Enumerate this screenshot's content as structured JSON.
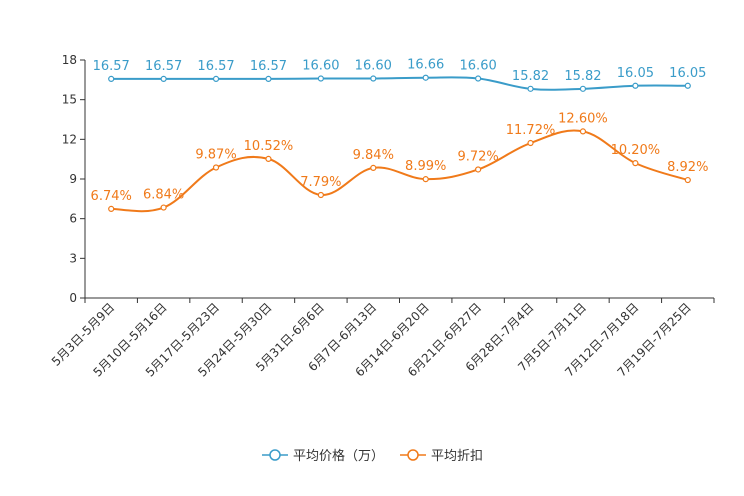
{
  "chart_data": {
    "type": "line",
    "title": "",
    "xlabel": "",
    "ylabel": "",
    "ylim": [
      0,
      18
    ],
    "yticks": [
      0,
      3,
      6,
      9,
      12,
      15,
      18
    ],
    "grid": false,
    "legend_position": "bottom-center",
    "categories": [
      "5月3日-5月9日",
      "5月10日-5月16日",
      "5月17日-5月23日",
      "5月24日-5月30日",
      "5月31日-6月6日",
      "6月7日-6月13日",
      "6月14日-6月20日",
      "6月21日-6月27日",
      "6月28日-7月4日",
      "7月5日-7月11日",
      "7月12日-7月18日",
      "7月19日-7月25日"
    ],
    "series": [
      {
        "name": "平均价格（万）",
        "color": "#3a9cc9",
        "values": [
          16.57,
          16.57,
          16.57,
          16.57,
          16.6,
          16.6,
          16.66,
          16.6,
          15.82,
          15.82,
          16.05,
          16.05
        ],
        "labels": [
          "16.57",
          "16.57",
          "16.57",
          "16.57",
          "16.60",
          "16.60",
          "16.66",
          "16.60",
          "15.82",
          "15.82",
          "16.05",
          "16.05"
        ]
      },
      {
        "name": "平均折扣",
        "color": "#f07a1a",
        "values": [
          6.74,
          6.84,
          9.87,
          10.52,
          7.79,
          9.84,
          8.99,
          9.72,
          11.72,
          12.6,
          10.2,
          8.92
        ],
        "labels": [
          "6.74%",
          "6.84%",
          "9.87%",
          "10.52%",
          "7.79%",
          "9.84%",
          "8.99%",
          "9.72%",
          "11.72%",
          "12.60%",
          "10.20%",
          "8.92%"
        ]
      }
    ]
  }
}
